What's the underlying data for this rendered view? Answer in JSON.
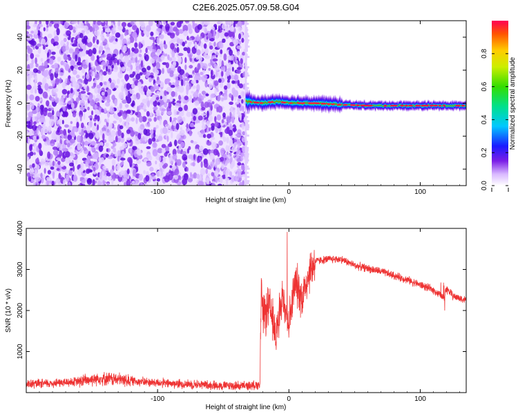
{
  "title": "C2E6.2025.057.09.58.G04",
  "chart_data": [
    {
      "type": "heatmap",
      "xlabel": "Height of straight line (km)",
      "ylabel": "Frequency (Hz)",
      "xlim": [
        -200,
        135
      ],
      "ylim": [
        -50,
        50
      ],
      "xticks": [
        -100,
        0,
        100
      ],
      "yticks": [
        -40,
        -20,
        0,
        20,
        40
      ],
      "noise_region_x": [
        -200,
        -33
      ],
      "signal_band": {
        "x_start": -33,
        "x_end": 135,
        "frequency_hz": [
          [
            -33,
            1
          ],
          [
            -20,
            0
          ],
          [
            -10,
            1
          ],
          [
            0,
            0
          ],
          [
            20,
            0
          ],
          [
            40,
            -1
          ],
          [
            60,
            -1.5
          ],
          [
            80,
            -1.5
          ],
          [
            100,
            -1.5
          ],
          [
            120,
            -1.5
          ],
          [
            135,
            -1.5
          ]
        ]
      },
      "colorbar": {
        "label": "Normalized spectral amplitude",
        "range": [
          0,
          1
        ],
        "ticks": [
          0.0,
          0.2,
          0.4,
          0.6,
          0.8
        ]
      }
    },
    {
      "type": "line",
      "xlabel": "Height of straight line (km)",
      "ylabel": "SNR (10 * v/v)",
      "xlim": [
        -200,
        135
      ],
      "ylim": [
        0,
        4000
      ],
      "xticks": [
        -100,
        0,
        100
      ],
      "yticks": [
        1000,
        2000,
        3000,
        4000
      ],
      "color": "#ee3333",
      "series": [
        {
          "x": [
            -200,
            -180,
            -160,
            -145,
            -130,
            -110,
            -90,
            -70,
            -50,
            -30,
            -22,
            -21,
            -20,
            -15,
            -10,
            -5,
            0,
            5,
            10,
            15,
            20,
            30,
            40,
            50,
            70,
            90,
            110,
            118,
            120,
            125,
            135
          ],
          "y": [
            200,
            230,
            270,
            350,
            320,
            260,
            220,
            200,
            170,
            160,
            200,
            2700,
            1800,
            2100,
            1400,
            2300,
            1700,
            2700,
            2300,
            2900,
            3200,
            3250,
            3250,
            3100,
            2950,
            2750,
            2500,
            2300,
            2550,
            2350,
            2250
          ]
        }
      ]
    }
  ]
}
